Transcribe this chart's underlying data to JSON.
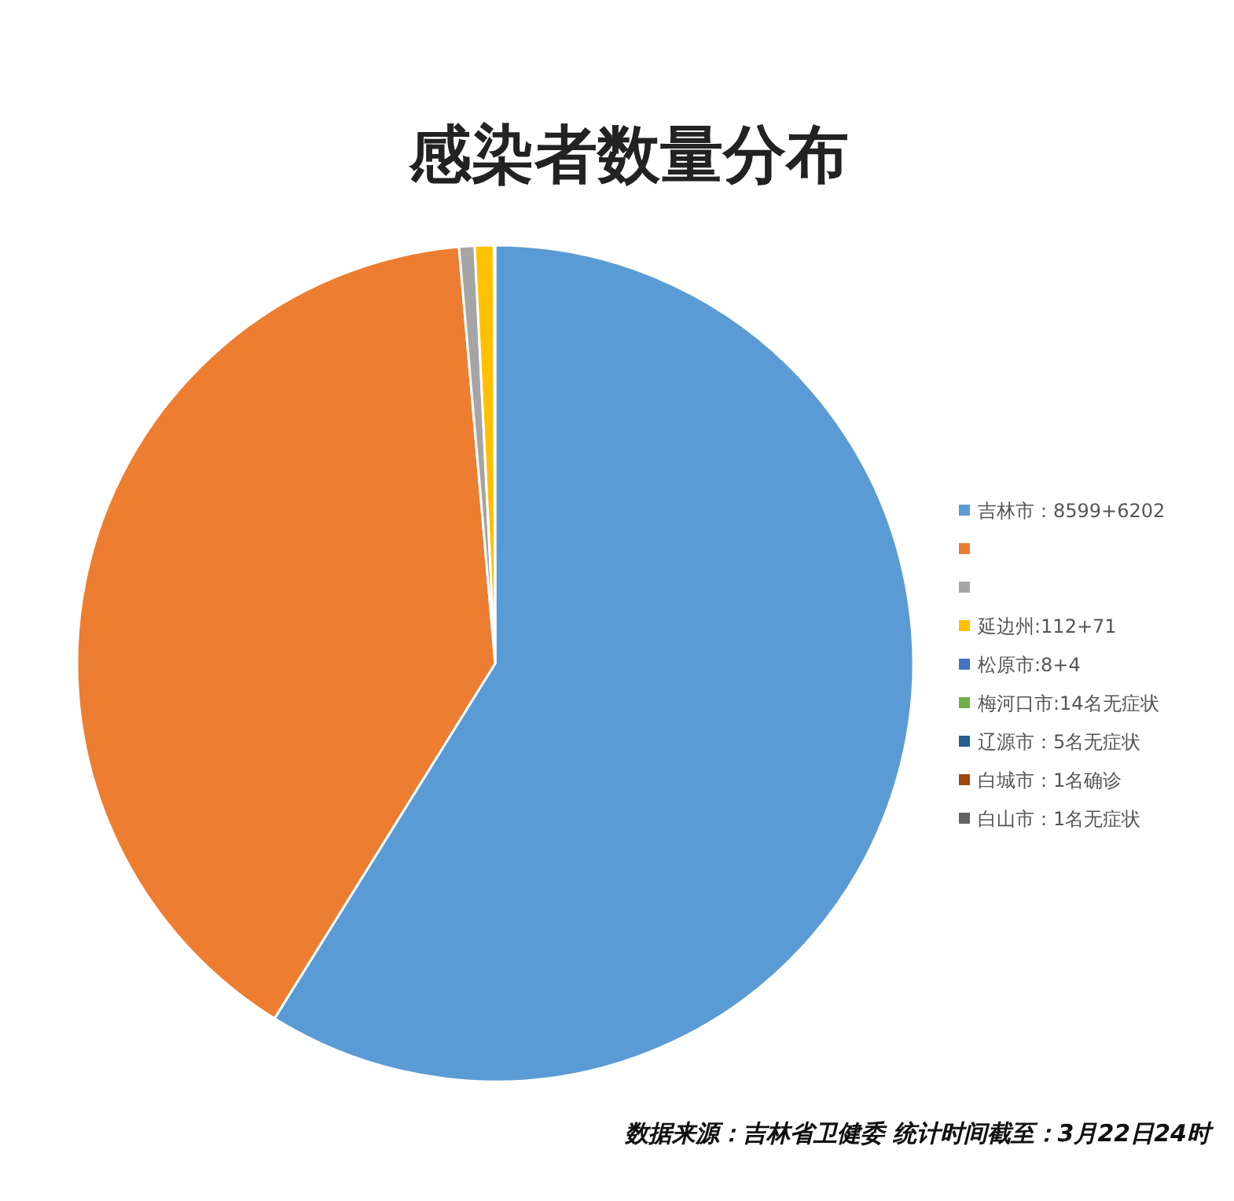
{
  "chart_data": {
    "type": "pie",
    "title": "感染者数量分布",
    "categories": [
      "吉林市：8599+6202",
      null,
      null,
      "延边州:112+71",
      "松原市:8+4",
      "梅河口市:14名无症状",
      "辽源市：5名无症状",
      "白城市：1名确诊",
      "白山市：1名无症状"
    ],
    "values": [
      58.8,
      39.736,
      0.6,
      0.73,
      0.05,
      null,
      null,
      null,
      null
    ],
    "colors": [
      "#5b9bd5",
      "#ed7d31",
      "#a5a5a5",
      "#ffc000",
      "#4472c4",
      "#70ad47",
      "#255e91",
      "#9e480e",
      "#636363"
    ],
    "legend": "right",
    "annotations": [
      "数据来源：吉林省卫健委  统计时间截至：3月22日24时"
    ]
  }
}
